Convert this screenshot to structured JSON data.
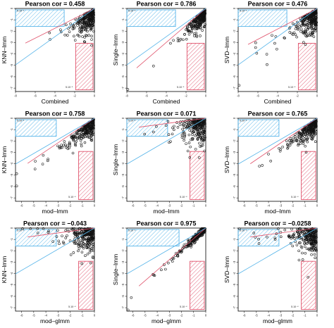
{
  "figure": {
    "colors": {
      "points": "#111111",
      "fit_line": "#e0526b",
      "identity_line": "#56b4e9",
      "blue_region": "#56b4e9",
      "red_region": "#e0526b"
    },
    "threshold_label": "5.10⁻⁴"
  },
  "chart_data": [
    {
      "type": "scatter",
      "title": "Pearson cor = 0.458",
      "xlabel": "Combined",
      "ylabel": "KNN–lmm",
      "x_ticks": [
        "-8",
        "-6",
        "-4",
        "-2",
        "0"
      ],
      "y_ticks": [
        "-7",
        "-6",
        "-5",
        "-4",
        "-3",
        "-2",
        "-1",
        "0"
      ],
      "cor": 0.458,
      "xlim": [
        -8,
        0
      ],
      "ylim": [
        -7.3,
        0
      ],
      "legend": "none"
    },
    {
      "type": "scatter",
      "title": "Pearson cor = 0.786",
      "xlabel": "Combined",
      "ylabel": "Single–lmm",
      "x_ticks": [
        "-8",
        "-6",
        "-4",
        "-2",
        "0"
      ],
      "y_ticks": [
        "-7",
        "-6",
        "-5",
        "-4",
        "-3",
        "-2",
        "-1",
        "0"
      ],
      "cor": 0.786,
      "xlim": [
        -8,
        0
      ],
      "ylim": [
        -7.3,
        0
      ],
      "legend": "none"
    },
    {
      "type": "scatter",
      "title": "Pearson cor = 0.476",
      "xlabel": "Combined",
      "ylabel": "SVD–lmm",
      "x_ticks": [
        "-8",
        "-6",
        "-4",
        "-2",
        "0"
      ],
      "y_ticks": [
        "-7",
        "-6",
        "-5",
        "-4",
        "-3",
        "-2",
        "-1",
        "0"
      ],
      "cor": 0.476,
      "xlim": [
        -8,
        0
      ],
      "ylim": [
        -7.3,
        0
      ],
      "legend": "none"
    },
    {
      "type": "scatter",
      "title": "Pearson cor = 0.758",
      "xlabel": "mod–lmm",
      "ylabel": "KNN–lmm",
      "x_ticks": [
        "-6",
        "-5",
        "-4",
        "-3",
        "-2",
        "-1",
        "0"
      ],
      "y_ticks": [
        "-7",
        "-6",
        "-5",
        "-4",
        "-3",
        "-2",
        "-1",
        "0"
      ],
      "cor": 0.758,
      "xlim": [
        -6.5,
        0
      ],
      "ylim": [
        -7.3,
        0
      ],
      "legend": "none"
    },
    {
      "type": "scatter",
      "title": "Pearson cor = 0.071",
      "xlabel": "mod–lmm",
      "ylabel": "Single–lmm",
      "x_ticks": [
        "-6",
        "-5",
        "-4",
        "-3",
        "-2",
        "-1",
        "0"
      ],
      "y_ticks": [
        "-7",
        "-6",
        "-5",
        "-4",
        "-3",
        "-2",
        "-1",
        "0"
      ],
      "cor": 0.071,
      "xlim": [
        -6.5,
        0
      ],
      "ylim": [
        -7.3,
        0
      ],
      "legend": "none"
    },
    {
      "type": "scatter",
      "title": "Pearson cor = 0.765",
      "xlabel": "mod–lmm",
      "ylabel": "SVD–lmm",
      "x_ticks": [
        "-6",
        "-5",
        "-4",
        "-3",
        "-2",
        "-1",
        "0"
      ],
      "y_ticks": [
        "-7",
        "-6",
        "-5",
        "-4",
        "-3",
        "-2",
        "-1",
        "0"
      ],
      "cor": 0.765,
      "xlim": [
        -6.5,
        0
      ],
      "ylim": [
        -7.3,
        0
      ],
      "legend": "none"
    },
    {
      "type": "scatter",
      "title": "Pearson cor = −0.043",
      "xlabel": "mod–glmm",
      "ylabel": "KNN–lmm",
      "x_ticks": [
        "-6",
        "-5",
        "-4",
        "-3",
        "-2",
        "-1",
        "0"
      ],
      "y_ticks": [
        "-7",
        "-6",
        "-5",
        "-4",
        "-3",
        "-2",
        "-1",
        "0"
      ],
      "cor": -0.043,
      "xlim": [
        -6.5,
        0
      ],
      "ylim": [
        -7.3,
        0
      ],
      "legend": "none"
    },
    {
      "type": "scatter",
      "title": "Pearson cor = 0.975",
      "xlabel": "mod–glmm",
      "ylabel": "Single–lmm",
      "x_ticks": [
        "-6",
        "-5",
        "-4",
        "-3",
        "-2",
        "-1",
        "0"
      ],
      "y_ticks": [
        "-7",
        "-6",
        "-5",
        "-4",
        "-3",
        "-2",
        "-1",
        "0"
      ],
      "cor": 0.975,
      "xlim": [
        -6.5,
        0
      ],
      "ylim": [
        -7.3,
        0
      ],
      "legend": "none"
    },
    {
      "type": "scatter",
      "title": "Pearson cor = −0.0258",
      "xlabel": "mod–glmm",
      "ylabel": "SVD–lmm",
      "x_ticks": [
        "-6",
        "-5",
        "-4",
        "-3",
        "-2",
        "-1",
        "0"
      ],
      "y_ticks": [
        "-7",
        "-6",
        "-5",
        "-4",
        "-3",
        "-2",
        "-1",
        "0"
      ],
      "cor": -0.0258,
      "xlim": [
        -6.5,
        0
      ],
      "ylim": [
        -7.3,
        0
      ],
      "legend": "none"
    }
  ]
}
